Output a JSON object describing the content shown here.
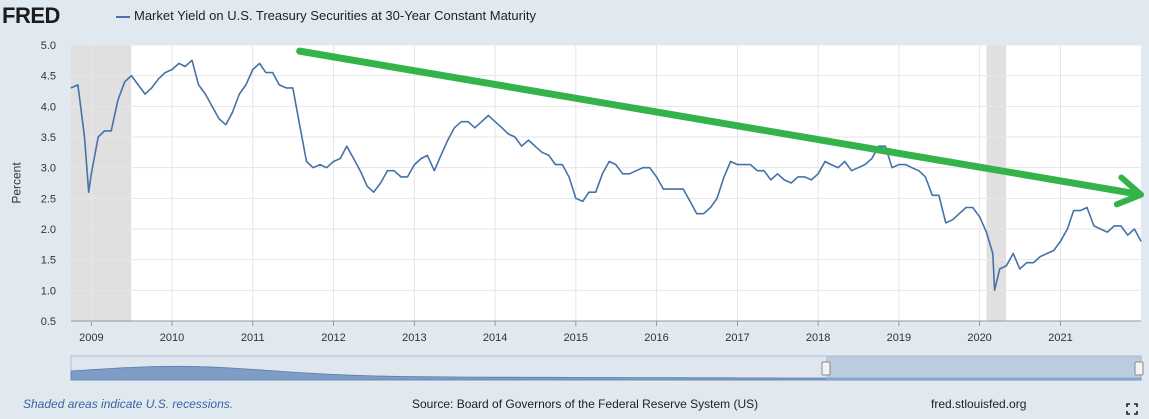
{
  "header": {
    "logo_text": "FRED",
    "series_title": "Market Yield on U.S. Treasury Securities at 30-Year Constant Maturity"
  },
  "footer": {
    "recession_note": "Shaded areas indicate U.S. recessions.",
    "source": "Source: Board of Governors of the Federal Reserve System (US)",
    "site": "fred.stlouisfed.org"
  },
  "colors": {
    "series": "#4572a7",
    "trend_arrow": "#34b34a",
    "recession": "#e0e0e0",
    "background": "#e1e9f0"
  },
  "chart_data": {
    "type": "line",
    "title": "Market Yield on U.S. Treasury Securities at 30-Year Constant Maturity",
    "ylabel": "Percent",
    "xlabel": "",
    "ylim": [
      0.5,
      5.0
    ],
    "xlim": [
      "2008-10-01",
      "2021-12-31"
    ],
    "yticks": [
      "0.5",
      "1.0",
      "1.5",
      "2.0",
      "2.5",
      "3.0",
      "3.5",
      "4.0",
      "4.5",
      "5.0"
    ],
    "xticks": [
      "2009",
      "2010",
      "2011",
      "2012",
      "2013",
      "2014",
      "2015",
      "2016",
      "2017",
      "2018",
      "2019",
      "2020",
      "2021"
    ],
    "grid": true,
    "recessions": [
      {
        "start": "2008-10-01",
        "end": "2009-06-30"
      },
      {
        "start": "2020-02-01",
        "end": "2020-04-30"
      }
    ],
    "annotation": {
      "type": "arrow",
      "start": {
        "x": "2011-08-01",
        "y": 4.9
      },
      "end": {
        "x": "2021-12-31",
        "y": 2.56
      }
    },
    "series": [
      {
        "name": "Market Yield on U.S. Treasury Securities at 30-Year Constant Maturity",
        "x": [
          "2008-10-01",
          "2008-11-01",
          "2008-12-01",
          "2008-12-20",
          "2009-01-01",
          "2009-02-01",
          "2009-03-01",
          "2009-04-01",
          "2009-05-01",
          "2009-06-01",
          "2009-07-01",
          "2009-08-01",
          "2009-09-01",
          "2009-10-01",
          "2009-11-01",
          "2009-12-01",
          "2010-01-01",
          "2010-02-01",
          "2010-03-01",
          "2010-04-01",
          "2010-05-01",
          "2010-06-01",
          "2010-07-01",
          "2010-08-01",
          "2010-09-01",
          "2010-10-01",
          "2010-11-01",
          "2010-12-01",
          "2011-01-01",
          "2011-02-01",
          "2011-03-01",
          "2011-04-01",
          "2011-05-01",
          "2011-06-01",
          "2011-07-01",
          "2011-08-01",
          "2011-09-01",
          "2011-10-01",
          "2011-11-01",
          "2011-12-01",
          "2012-01-01",
          "2012-02-01",
          "2012-03-01",
          "2012-04-01",
          "2012-05-01",
          "2012-06-01",
          "2012-07-01",
          "2012-08-01",
          "2012-09-01",
          "2012-10-01",
          "2012-11-01",
          "2012-12-01",
          "2013-01-01",
          "2013-02-01",
          "2013-03-01",
          "2013-04-01",
          "2013-05-01",
          "2013-06-01",
          "2013-07-01",
          "2013-08-01",
          "2013-09-01",
          "2013-10-01",
          "2013-11-01",
          "2013-12-01",
          "2014-01-01",
          "2014-02-01",
          "2014-03-01",
          "2014-04-01",
          "2014-05-01",
          "2014-06-01",
          "2014-07-01",
          "2014-08-01",
          "2014-09-01",
          "2014-10-01",
          "2014-11-01",
          "2014-12-01",
          "2015-01-01",
          "2015-02-01",
          "2015-03-01",
          "2015-04-01",
          "2015-05-01",
          "2015-06-01",
          "2015-07-01",
          "2015-08-01",
          "2015-09-01",
          "2015-10-01",
          "2015-11-01",
          "2015-12-01",
          "2016-01-01",
          "2016-02-01",
          "2016-03-01",
          "2016-04-01",
          "2016-05-01",
          "2016-06-01",
          "2016-07-01",
          "2016-08-01",
          "2016-09-01",
          "2016-10-01",
          "2016-11-01",
          "2016-12-01",
          "2017-01-01",
          "2017-02-01",
          "2017-03-01",
          "2017-04-01",
          "2017-05-01",
          "2017-06-01",
          "2017-07-01",
          "2017-08-01",
          "2017-09-01",
          "2017-10-01",
          "2017-11-01",
          "2017-12-01",
          "2018-01-01",
          "2018-02-01",
          "2018-03-01",
          "2018-04-01",
          "2018-05-01",
          "2018-06-01",
          "2018-07-01",
          "2018-08-01",
          "2018-09-01",
          "2018-10-01",
          "2018-11-01",
          "2018-12-01",
          "2019-01-01",
          "2019-02-01",
          "2019-03-01",
          "2019-04-01",
          "2019-05-01",
          "2019-06-01",
          "2019-07-01",
          "2019-08-01",
          "2019-09-01",
          "2019-10-01",
          "2019-11-01",
          "2019-12-01",
          "2020-01-01",
          "2020-02-01",
          "2020-03-01",
          "2020-03-09",
          "2020-04-01",
          "2020-05-01",
          "2020-06-01",
          "2020-07-01",
          "2020-08-01",
          "2020-09-01",
          "2020-10-01",
          "2020-11-01",
          "2020-12-01",
          "2021-01-01",
          "2021-02-01",
          "2021-03-01",
          "2021-04-01",
          "2021-05-01",
          "2021-06-01",
          "2021-07-01",
          "2021-08-01",
          "2021-09-01",
          "2021-10-01",
          "2021-11-01",
          "2021-12-01",
          "2021-12-31"
        ],
        "y": [
          4.3,
          4.35,
          3.5,
          2.6,
          2.9,
          3.5,
          3.6,
          3.6,
          4.1,
          4.4,
          4.5,
          4.35,
          4.2,
          4.3,
          4.45,
          4.55,
          4.6,
          4.7,
          4.65,
          4.75,
          4.35,
          4.2,
          4.0,
          3.8,
          3.7,
          3.9,
          4.2,
          4.35,
          4.6,
          4.7,
          4.55,
          4.55,
          4.35,
          4.3,
          4.3,
          3.7,
          3.1,
          3.0,
          3.05,
          3.0,
          3.1,
          3.15,
          3.35,
          3.15,
          2.95,
          2.7,
          2.6,
          2.75,
          2.95,
          2.95,
          2.85,
          2.85,
          3.05,
          3.15,
          3.2,
          2.95,
          3.2,
          3.45,
          3.65,
          3.75,
          3.75,
          3.65,
          3.75,
          3.85,
          3.75,
          3.65,
          3.55,
          3.5,
          3.35,
          3.45,
          3.35,
          3.25,
          3.2,
          3.05,
          3.05,
          2.85,
          2.5,
          2.45,
          2.6,
          2.6,
          2.9,
          3.1,
          3.05,
          2.9,
          2.9,
          2.95,
          3.0,
          3.0,
          2.85,
          2.65,
          2.65,
          2.65,
          2.65,
          2.45,
          2.25,
          2.25,
          2.35,
          2.5,
          2.85,
          3.1,
          3.05,
          3.05,
          3.05,
          2.95,
          2.95,
          2.8,
          2.9,
          2.8,
          2.75,
          2.85,
          2.85,
          2.8,
          2.9,
          3.1,
          3.05,
          3.0,
          3.1,
          2.95,
          3.0,
          3.05,
          3.15,
          3.35,
          3.35,
          3.0,
          3.05,
          3.05,
          3.0,
          2.95,
          2.85,
          2.55,
          2.55,
          2.1,
          2.15,
          2.25,
          2.35,
          2.35,
          2.2,
          1.95,
          1.6,
          1.0,
          1.35,
          1.4,
          1.6,
          1.35,
          1.45,
          1.45,
          1.55,
          1.6,
          1.65,
          1.8,
          2.0,
          2.3,
          2.3,
          2.35,
          2.05,
          2.0,
          1.95,
          2.05,
          2.05,
          1.9,
          2.0,
          1.8
        ]
      }
    ]
  }
}
